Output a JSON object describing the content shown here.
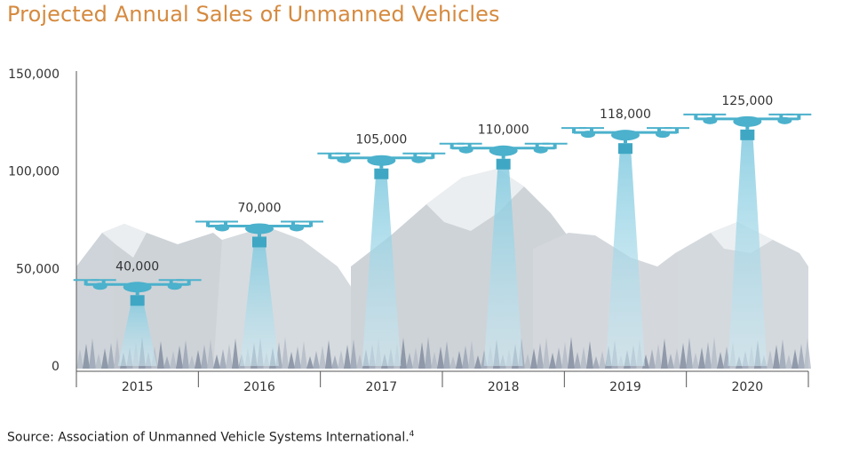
{
  "title": "Projected Annual Sales of Unmanned Vehicles",
  "source": {
    "text": "Source: Association of Unmanned Vehicle Systems International.",
    "footnote": "4"
  },
  "colors": {
    "title": "#d58a3f",
    "drone": "#4bb1cc",
    "beam": "#8fd0e2",
    "mountain": "#c3c9cf",
    "trees": "#7f8a9d"
  },
  "chart_data": {
    "type": "bar",
    "title": "Projected Annual Sales of Unmanned Vehicles",
    "categories": [
      "2015",
      "2016",
      "2017",
      "2018",
      "2019",
      "2020"
    ],
    "values": [
      40000,
      70000,
      105000,
      110000,
      118000,
      125000
    ],
    "data_labels": [
      "40,000",
      "70,000",
      "105,000",
      "110,000",
      "118,000",
      "125,000"
    ],
    "y_ticks": [
      0,
      50000,
      100000,
      150000
    ],
    "y_tick_labels": [
      "0",
      "50,000",
      "100,000",
      "150,000"
    ],
    "ylim": [
      0,
      150000
    ],
    "xlabel": "",
    "ylabel": "",
    "grid": false,
    "legend": "none",
    "mark_style": "drone-with-light-beam"
  }
}
